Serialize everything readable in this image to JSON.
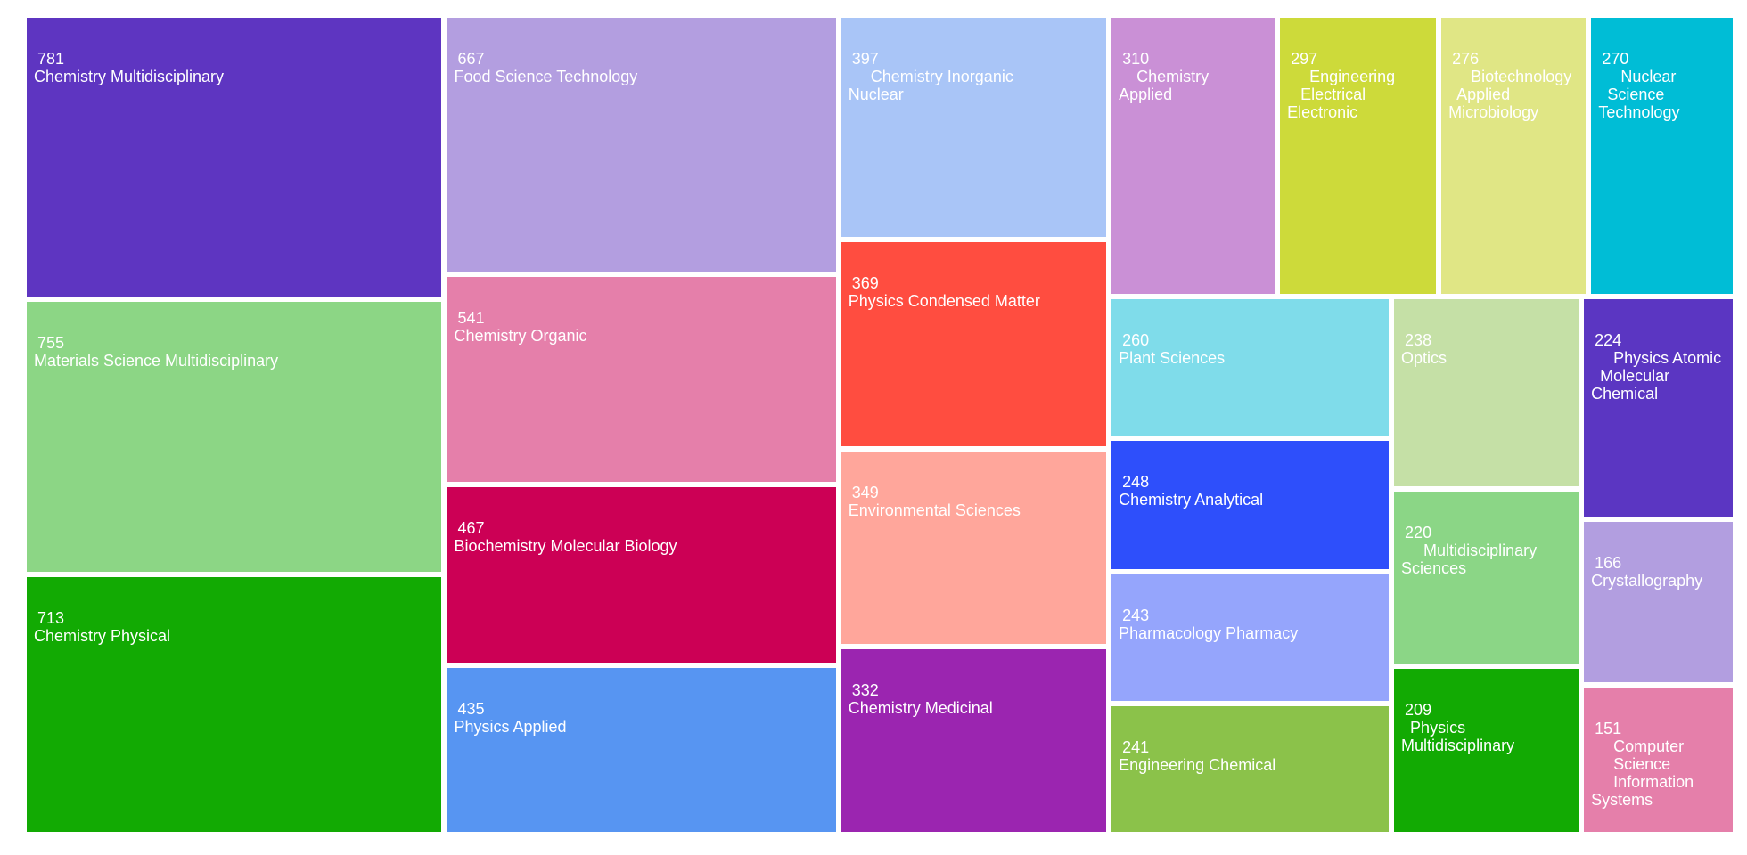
{
  "chart_data": {
    "type": "treemap",
    "title": "",
    "colors": {
      "Chemistry Multidisciplinary": "#5e35c1",
      "Materials Science Multidisciplinary": "#8cd685",
      "Chemistry Physical": "#12aa03",
      "Food Science Technology": "#b39ee0",
      "Chemistry Organic": "#e57faa",
      "Biochemistry Molecular Biology": "#cc0055",
      "Physics Applied": "#5795f2",
      "Chemistry Inorganic Nuclear": "#a9c5f7",
      "Physics Condensed Matter": "#ff4d40",
      "Environmental Sciences": "#ffa69b",
      "Chemistry Medicinal": "#9b25b0",
      "Chemistry Applied": "#ca90d6",
      "Engineering Electrical Electronic": "#cdda3a",
      "Biotechnology Applied Microbiology": "#e0e685",
      "Nuclear Science Technology": "#00bdd6",
      "Plant Sciences": "#7fdcea",
      "Chemistry Analytical": "#2e4ffb",
      "Pharmacology Pharmacy": "#95a5fc",
      "Engineering Chemical": "#8bc24a",
      "Optics": "#c5e0a6",
      "Physics Atomic Molecular Chemical": "#5b36c2",
      "Multidisciplinary Sciences": "#8bd686",
      "Physics Multidisciplinary": "#12aa03",
      "Crystallography": "#b29ee0",
      "Computer Science Information Systems": "#e57faa"
    },
    "items": [
      {
        "value": 781,
        "value_label": "781",
        "name": "Chemistry Multidisciplinary",
        "label": "Chemistry Multidisciplinary"
      },
      {
        "value": 755,
        "value_label": "755",
        "name": "Materials Science Multidisciplinary",
        "label": "Materials Science Multidisciplinary"
      },
      {
        "value": 713,
        "value_label": "713",
        "name": "Chemistry Physical",
        "label": "Chemistry Physical"
      },
      {
        "value": 667,
        "value_label": "667",
        "name": "Food Science Technology",
        "label": "Food Science Technology"
      },
      {
        "value": 541,
        "value_label": "541",
        "name": "Chemistry Organic",
        "label": "Chemistry Organic"
      },
      {
        "value": 467,
        "value_label": "467",
        "name": "Biochemistry Molecular Biology",
        "label": "Biochemistry Molecular Biology"
      },
      {
        "value": 435,
        "value_label": "435",
        "name": "Physics Applied",
        "label": "Physics Applied"
      },
      {
        "value": 397,
        "value_label": "397",
        "name": "Chemistry Inorganic Nuclear",
        "label": "     Chemistry Inorganic\nNuclear"
      },
      {
        "value": 369,
        "value_label": "369",
        "name": "Physics Condensed Matter",
        "label": "Physics Condensed Matter"
      },
      {
        "value": 349,
        "value_label": "349",
        "name": "Environmental Sciences",
        "label": "Environmental Sciences"
      },
      {
        "value": 332,
        "value_label": "332",
        "name": "Chemistry Medicinal",
        "label": "Chemistry Medicinal"
      },
      {
        "value": 310,
        "value_label": "310",
        "name": "Chemistry Applied",
        "label": "    Chemistry\nApplied"
      },
      {
        "value": 297,
        "value_label": "297",
        "name": "Engineering Electrical Electronic",
        "label": "     Engineering\n   Electrical\nElectronic"
      },
      {
        "value": 276,
        "value_label": "276",
        "name": "Biotechnology Applied Microbiology",
        "label": "     Biotechnology\n  Applied\nMicrobiology"
      },
      {
        "value": 270,
        "value_label": "270",
        "name": "Nuclear Science Technology",
        "label": "     Nuclear\n  Science\nTechnology"
      },
      {
        "value": 260,
        "value_label": "260",
        "name": "Plant Sciences",
        "label": "Plant Sciences"
      },
      {
        "value": 248,
        "value_label": "248",
        "name": "Chemistry Analytical",
        "label": "Chemistry Analytical"
      },
      {
        "value": 243,
        "value_label": "243",
        "name": "Pharmacology Pharmacy",
        "label": "Pharmacology Pharmacy"
      },
      {
        "value": 241,
        "value_label": "241",
        "name": "Engineering Chemical",
        "label": "Engineering Chemical"
      },
      {
        "value": 238,
        "value_label": "238",
        "name": "Optics",
        "label": "Optics"
      },
      {
        "value": 224,
        "value_label": "224",
        "name": "Physics Atomic Molecular Chemical",
        "label": "     Physics Atomic\n  Molecular\nChemical"
      },
      {
        "value": 220,
        "value_label": "220",
        "name": "Multidisciplinary Sciences",
        "label": "     Multidisciplinary\nSciences"
      },
      {
        "value": 209,
        "value_label": "209",
        "name": "Physics Multidisciplinary",
        "label": "  Physics\nMultidisciplinary"
      },
      {
        "value": 166,
        "value_label": "166",
        "name": "Crystallography",
        "label": "Crystallography"
      },
      {
        "value": 151,
        "value_label": "151",
        "name": "Computer Science Information Systems",
        "label": "     Computer\n     Science\n     Information\nSystems"
      }
    ]
  }
}
